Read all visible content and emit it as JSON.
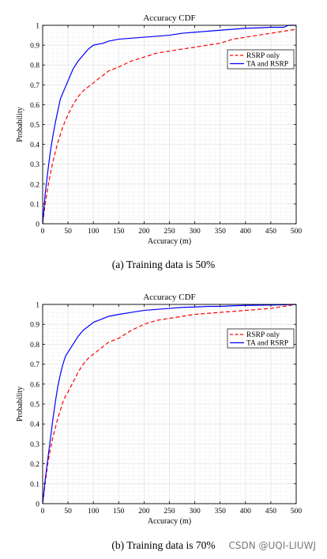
{
  "chart_data": [
    {
      "type": "line",
      "title": "Accuracy CDF",
      "xlabel": "Accuracy (m)",
      "ylabel": "Probability",
      "xlim": [
        0,
        500
      ],
      "ylim": [
        0,
        1
      ],
      "xticks": [
        "0",
        "50",
        "100",
        "150",
        "200",
        "250",
        "300",
        "350",
        "400",
        "450",
        "500"
      ],
      "yticks": [
        "0",
        "0.1",
        "0.2",
        "0.3",
        "0.4",
        "0.5",
        "0.6",
        "0.7",
        "0.8",
        "0.9",
        "1"
      ],
      "grid": true,
      "legend_position": "top-right",
      "caption": "(a) Training data is 50%",
      "series": [
        {
          "name": "RSRP only",
          "color": "#ff0000",
          "style": "dashed",
          "x": [
            0,
            5,
            10,
            15,
            20,
            25,
            30,
            35,
            40,
            45,
            50,
            60,
            70,
            80,
            90,
            100,
            110,
            120,
            130,
            140,
            150,
            175,
            200,
            225,
            250,
            275,
            300,
            325,
            350,
            375,
            400,
            425,
            450,
            475,
            500
          ],
          "y": [
            0,
            0.1,
            0.18,
            0.25,
            0.31,
            0.36,
            0.41,
            0.45,
            0.49,
            0.52,
            0.55,
            0.6,
            0.64,
            0.67,
            0.69,
            0.71,
            0.73,
            0.75,
            0.77,
            0.78,
            0.79,
            0.82,
            0.84,
            0.86,
            0.87,
            0.88,
            0.89,
            0.9,
            0.91,
            0.93,
            0.94,
            0.95,
            0.96,
            0.97,
            0.98
          ]
        },
        {
          "name": "TA and RSRP",
          "color": "#0000ff",
          "style": "solid",
          "x": [
            0,
            5,
            10,
            15,
            20,
            25,
            30,
            35,
            40,
            45,
            50,
            60,
            70,
            80,
            90,
            100,
            110,
            120,
            130,
            140,
            150,
            175,
            200,
            225,
            250,
            275,
            300,
            325,
            350,
            375,
            400,
            425,
            450,
            475,
            485,
            500
          ],
          "y": [
            0,
            0.15,
            0.26,
            0.36,
            0.44,
            0.51,
            0.57,
            0.63,
            0.66,
            0.69,
            0.72,
            0.78,
            0.82,
            0.85,
            0.88,
            0.9,
            0.905,
            0.91,
            0.92,
            0.925,
            0.93,
            0.935,
            0.94,
            0.945,
            0.95,
            0.96,
            0.965,
            0.97,
            0.975,
            0.98,
            0.985,
            0.987,
            0.99,
            0.99,
            1,
            1
          ]
        }
      ]
    },
    {
      "type": "line",
      "title": "Accuracy CDF",
      "xlabel": "Accuracy (m)",
      "ylabel": "Probability",
      "xlim": [
        0,
        500
      ],
      "ylim": [
        0,
        1
      ],
      "xticks": [
        "0",
        "50",
        "100",
        "150",
        "200",
        "250",
        "300",
        "350",
        "400",
        "450",
        "500"
      ],
      "yticks": [
        "0",
        "0.1",
        "0.2",
        "0.3",
        "0.4",
        "0.5",
        "0.6",
        "0.7",
        "0.8",
        "0.9",
        "1"
      ],
      "grid": true,
      "legend_position": "top-right",
      "caption": "(b) Training data is 70%",
      "series": [
        {
          "name": "RSRP only",
          "color": "#ff0000",
          "style": "dashed",
          "x": [
            0,
            5,
            10,
            15,
            20,
            25,
            30,
            35,
            40,
            45,
            50,
            60,
            70,
            80,
            90,
            100,
            110,
            120,
            130,
            140,
            150,
            175,
            200,
            225,
            250,
            275,
            300,
            325,
            350,
            375,
            400,
            425,
            450,
            475,
            500
          ],
          "y": [
            0,
            0.1,
            0.2,
            0.27,
            0.33,
            0.38,
            0.43,
            0.47,
            0.51,
            0.54,
            0.56,
            0.61,
            0.66,
            0.7,
            0.73,
            0.75,
            0.77,
            0.79,
            0.81,
            0.82,
            0.83,
            0.87,
            0.9,
            0.92,
            0.93,
            0.94,
            0.95,
            0.955,
            0.96,
            0.965,
            0.97,
            0.975,
            0.98,
            0.99,
            1
          ]
        },
        {
          "name": "TA and RSRP",
          "color": "#0000ff",
          "style": "solid",
          "x": [
            0,
            5,
            10,
            15,
            20,
            25,
            30,
            35,
            40,
            45,
            50,
            60,
            70,
            80,
            90,
            100,
            110,
            120,
            130,
            140,
            150,
            175,
            200,
            225,
            250,
            275,
            300,
            325,
            350,
            375,
            400,
            425,
            450,
            475,
            500
          ],
          "y": [
            0,
            0.12,
            0.22,
            0.32,
            0.42,
            0.51,
            0.59,
            0.65,
            0.7,
            0.74,
            0.76,
            0.8,
            0.84,
            0.87,
            0.89,
            0.91,
            0.92,
            0.93,
            0.94,
            0.945,
            0.95,
            0.96,
            0.97,
            0.975,
            0.98,
            0.985,
            0.987,
            0.99,
            0.99,
            0.993,
            0.995,
            0.996,
            0.997,
            0.998,
            1
          ]
        }
      ]
    }
  ],
  "watermark": "CSDN @UQI-LIUWJ"
}
